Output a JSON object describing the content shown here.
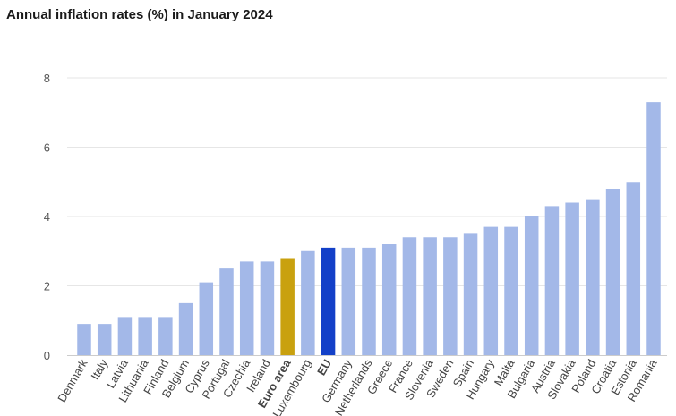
{
  "chart_data": {
    "type": "bar",
    "title": "Annual inflation rates (%) in January 2024",
    "xlabel": "",
    "ylabel": "",
    "ylim": [
      0,
      8
    ],
    "yticks": [
      0,
      2,
      4,
      6,
      8
    ],
    "grid": true,
    "categories": [
      "Denmark",
      "Italy",
      "Latvia",
      "Lithuania",
      "Finland",
      "Belgium",
      "Cyprus",
      "Portugal",
      "Czechia",
      "Ireland",
      "Euro area",
      "Luxembourg",
      "EU",
      "Germany",
      "Netherlands",
      "Greece",
      "France",
      "Slovenia",
      "Sweden",
      "Spain",
      "Hungary",
      "Malta",
      "Bulgaria",
      "Austria",
      "Slovakia",
      "Poland",
      "Croatia",
      "Estonia",
      "Romania"
    ],
    "values": [
      0.9,
      0.9,
      1.1,
      1.1,
      1.1,
      1.5,
      2.1,
      2.5,
      2.7,
      2.7,
      2.8,
      3.0,
      3.1,
      3.1,
      3.1,
      3.2,
      3.4,
      3.4,
      3.4,
      3.5,
      3.7,
      3.7,
      4.0,
      4.3,
      4.4,
      4.5,
      4.8,
      5.0,
      7.3
    ],
    "highlighted": {
      "Euro area": "#c9a10f",
      "EU": "#1340c8"
    },
    "bold_labels": [
      "Euro area",
      "EU"
    ],
    "colors": {
      "bar": "#a3b8e8",
      "grid": "#e6e6e6",
      "axis": "#cccccc"
    }
  }
}
